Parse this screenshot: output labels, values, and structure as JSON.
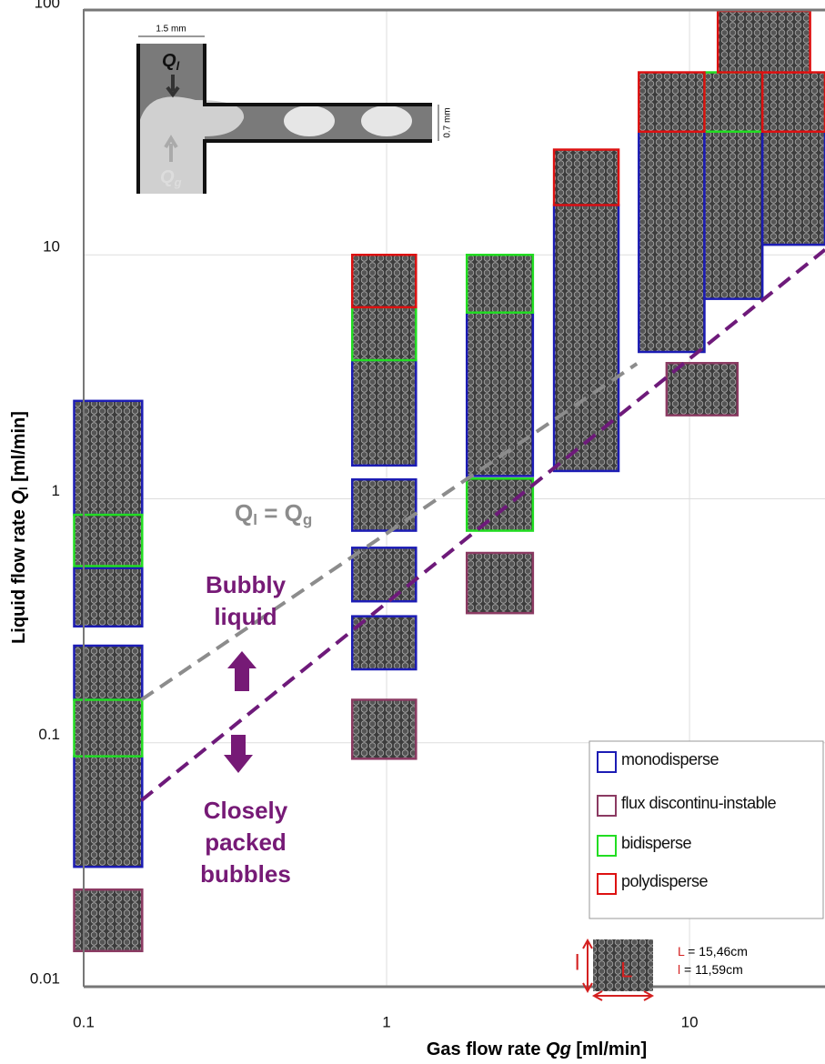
{
  "chart_data": {
    "type": "tiles",
    "x_label": [
      "Gas flow rate ",
      "Qg",
      " [ml/min]"
    ],
    "y_label": [
      "Liquid flow rate ",
      "Q",
      "l",
      " [ml/min]"
    ],
    "log_x": true,
    "log_y": true,
    "grid": true,
    "xlim": [
      0.1,
      28
    ],
    "ylim": [
      0.01,
      100
    ],
    "xticks": [
      0.1,
      1,
      10
    ],
    "yticks": [
      0.01,
      0.1,
      1,
      10,
      100
    ],
    "legend_position": "lower right",
    "series": [
      {
        "name": "monodisperse",
        "color": "#1c1cb4",
        "tiles": [
          {
            "x": [
              0.093,
              0.156
            ],
            "y": [
              0.86,
              2.52
            ]
          },
          {
            "x": [
              0.093,
              0.156
            ],
            "y": [
              0.3,
              0.52
            ]
          },
          {
            "x": [
              0.093,
              0.156
            ],
            "y": [
              0.15,
              0.25
            ]
          },
          {
            "x": [
              0.093,
              0.156
            ],
            "y": [
              0.031,
              0.088
            ]
          },
          {
            "x": [
              0.77,
              1.25
            ],
            "y": [
              1.37,
              3.7
            ]
          },
          {
            "x": [
              0.77,
              1.25
            ],
            "y": [
              0.74,
              1.2
            ]
          },
          {
            "x": [
              0.77,
              1.25
            ],
            "y": [
              0.38,
              0.63
            ]
          },
          {
            "x": [
              0.77,
              1.25
            ],
            "y": [
              0.2,
              0.33
            ]
          },
          {
            "x": [
              1.84,
              3.04
            ],
            "y": [
              1.24,
              5.8
            ]
          },
          {
            "x": [
              3.57,
              5.83
            ],
            "y": [
              1.3,
              16
            ]
          },
          {
            "x": [
              6.8,
              11.2
            ],
            "y": [
              4,
              32
            ]
          },
          {
            "x": [
              11.2,
              17.4
            ],
            "y": [
              6.6,
              32
            ]
          },
          {
            "x": [
              17.4,
              28
            ],
            "y": [
              11,
              32
            ]
          }
        ]
      },
      {
        "name": "flux discontinu-instable",
        "color": "#8b3a62",
        "tiles": [
          {
            "x": [
              0.093,
              0.156
            ],
            "y": [
              0.014,
              0.025
            ]
          },
          {
            "x": [
              0.77,
              1.25
            ],
            "y": [
              0.086,
              0.15
            ]
          },
          {
            "x": [
              1.84,
              3.04
            ],
            "y": [
              0.34,
              0.6
            ]
          },
          {
            "x": [
              8.4,
              14.4
            ],
            "y": [
              2.2,
              3.6
            ]
          }
        ]
      },
      {
        "name": "bidisperse",
        "color": "#22dd22",
        "tiles": [
          {
            "x": [
              0.093,
              0.156
            ],
            "y": [
              0.53,
              0.86
            ]
          },
          {
            "x": [
              0.093,
              0.156
            ],
            "y": [
              0.088,
              0.15
            ]
          },
          {
            "x": [
              0.77,
              1.25
            ],
            "y": [
              3.7,
              6.1
            ]
          },
          {
            "x": [
              1.84,
              3.04
            ],
            "y": [
              5.8,
              10
            ]
          },
          {
            "x": [
              1.84,
              3.04
            ],
            "y": [
              0.74,
              1.21
            ]
          },
          {
            "x": [
              11.2,
              17.4
            ],
            "y": [
              32,
              56
            ]
          }
        ]
      },
      {
        "name": "polydisperse",
        "color": "#dd1111",
        "tiles": [
          {
            "x": [
              0.77,
              1.25
            ],
            "y": [
              6.1,
              10
            ]
          },
          {
            "x": [
              3.57,
              5.83
            ],
            "y": [
              16,
              27
            ]
          },
          {
            "x": [
              6.8,
              11.2
            ],
            "y": [
              32,
              56
            ]
          },
          {
            "x": [
              17.4,
              28
            ],
            "y": [
              32,
              56
            ]
          },
          {
            "x": [
              12.4,
              25
            ],
            "y": [
              56,
              100
            ]
          }
        ]
      }
    ],
    "lines": [
      {
        "color": "#8c8c8c",
        "x": [
          0.155,
          6.7
        ],
        "y": [
          0.15,
          3.58
        ]
      },
      {
        "color": "#6e1a7a",
        "x": [
          0.155,
          28
        ],
        "y": [
          0.058,
          10.5
        ]
      }
    ],
    "equality_label": [
      "Q",
      "l",
      " = Q",
      "g"
    ],
    "upper_region": [
      "Bubbly",
      "liquid"
    ],
    "lower_region": [
      "Closely",
      "packed",
      "bubbles"
    ],
    "inset": {
      "width": "1.5 mm",
      "height": "0.7 mm",
      "liquid": [
        "Q",
        "l"
      ],
      "gas": [
        "Q",
        "g"
      ]
    },
    "scale": {
      "short": "l",
      "long": "L",
      "L_text": [
        "L",
        " = 15,46cm"
      ],
      "l_text": [
        "l",
        " = 11,59cm"
      ]
    }
  }
}
